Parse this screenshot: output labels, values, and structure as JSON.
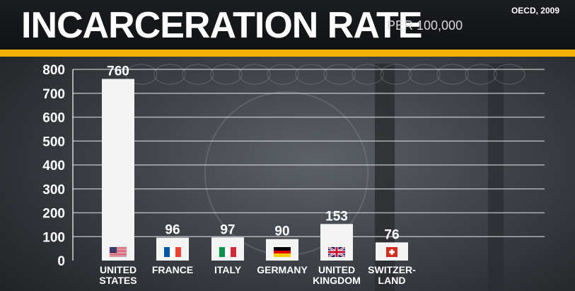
{
  "header": {
    "title": "INCARCERATION RATE",
    "subtitle": "PER 100,000",
    "source": "OECD, 2009"
  },
  "colors": {
    "accent": "#f2b300",
    "bar": "#f4f4f4",
    "background": "#3f4247",
    "text": "#ffffff"
  },
  "chart_data": {
    "type": "bar",
    "title": "INCARCERATION RATE",
    "subtitle": "PER 100,000",
    "source": "OECD, 2009",
    "categories": [
      [
        "UNITED",
        "STATES"
      ],
      [
        "FRANCE"
      ],
      [
        "ITALY"
      ],
      [
        "GERMANY"
      ],
      [
        "UNITED",
        "KINGDOM"
      ],
      [
        "SWITZER-",
        "LAND"
      ]
    ],
    "values": [
      760,
      96,
      97,
      90,
      153,
      76
    ],
    "flags": [
      "us-flag-icon",
      "france-flag-icon",
      "italy-flag-icon",
      "germany-flag-icon",
      "uk-flag-icon",
      "switzerland-flag-icon"
    ],
    "ylim": [
      0,
      800
    ],
    "yticks": [
      0,
      100,
      200,
      300,
      400,
      500,
      600,
      700,
      800
    ],
    "grid": true,
    "xlabel": "",
    "ylabel": ""
  }
}
